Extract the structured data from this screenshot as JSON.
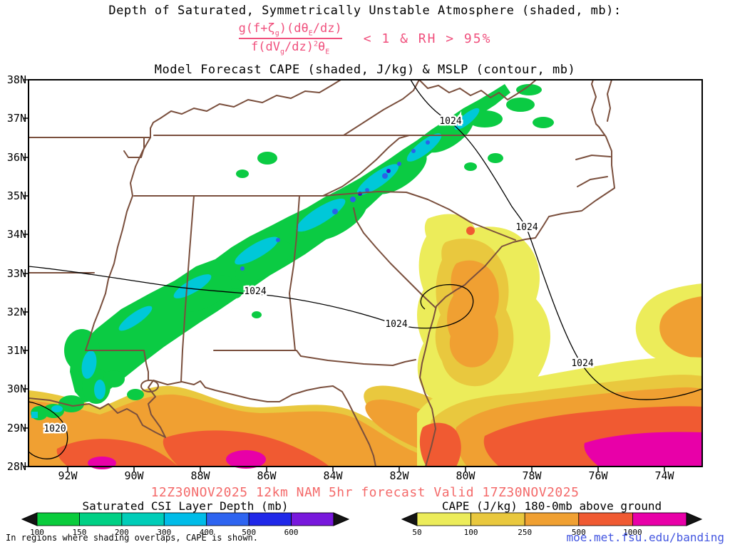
{
  "title": "Depth of Saturated, Symmetrically Unstable Atmosphere (shaded, mb):",
  "formula": {
    "num": [
      "g(f+ζ",
      "g",
      ")(dθ",
      "E",
      "/dz)"
    ],
    "den": [
      "f(dV",
      "g",
      "/dz)",
      "2",
      "θ",
      "E"
    ],
    "condition": "< 1 & RH > 95%"
  },
  "subtitle": "Model Forecast CAPE (shaded, J/kg) & MSLP (contour, mb)",
  "axes": {
    "lat": [
      "38N",
      "37N",
      "36N",
      "35N",
      "34N",
      "33N",
      "32N",
      "31N",
      "30N",
      "29N",
      "28N"
    ],
    "lon": [
      "92W",
      "90W",
      "88W",
      "86W",
      "84W",
      "82W",
      "80W",
      "78W",
      "76W",
      "74W"
    ]
  },
  "map": {
    "isobar_1024": "1024",
    "isobar_1020": "1020"
  },
  "footer": {
    "validity": "12Z30NOV2025 12km NAM 5hr forecast Valid 17Z30NOV2025",
    "overlap_note": "In regions where shading overlaps, CAPE is shown.",
    "site_link": "moe.met.fsu.edu/banding"
  },
  "colorbars": {
    "csi": {
      "title": "Saturated CSI Layer Depth (mb)",
      "values": [
        "100",
        "150",
        "200",
        "300",
        "400",
        "500",
        "600"
      ],
      "colors": [
        "#0ACC3C",
        "#00D084",
        "#00CDB8",
        "#00BCE8",
        "#2E64F0",
        "#2028E8",
        "#7818DC"
      ]
    },
    "cape": {
      "title": "CAPE (J/kg) 180-0mb above ground",
      "values": [
        "50",
        "100",
        "250",
        "500",
        "1000"
      ],
      "colors": [
        "#ECEC5A",
        "#E9C83E",
        "#F0A032",
        "#F05A32",
        "#E800A8"
      ]
    }
  },
  "colors": {
    "formula_pink": "#F0507D",
    "validity_red": "#F46A6A",
    "link_blue": "#4356E0",
    "state_border_brown": "#7A4F3D",
    "csi_green": "#0BCB43",
    "csi_cyan": "#00C8D8",
    "cape_yellow": "#ECEC5A",
    "cape_orange": "#F0A032",
    "cape_red": "#F05A32",
    "cape_magenta": "#E800A8"
  }
}
